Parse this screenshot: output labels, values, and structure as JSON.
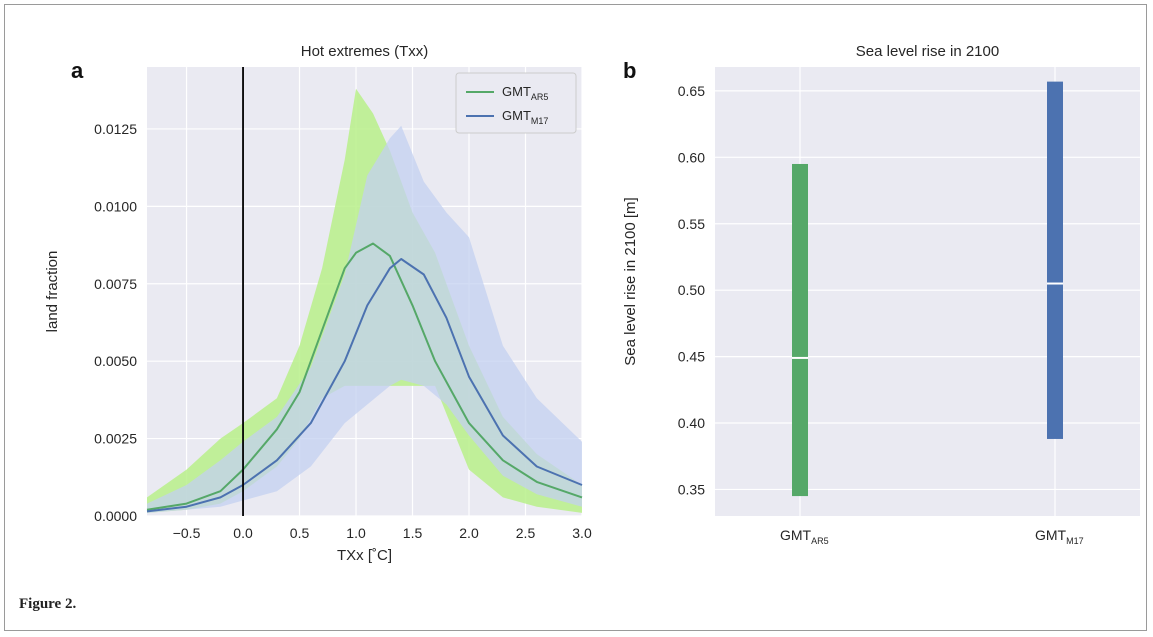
{
  "figure": {
    "caption": "Figure 2."
  },
  "chart_data": [
    {
      "type": "line",
      "panel_label": "a",
      "title": "Hot extremes (Txx)",
      "xlabel": "TXx [˚C]",
      "ylabel": "land fraction",
      "xlim": [
        -0.85,
        3.0
      ],
      "ylim": [
        0,
        0.0145
      ],
      "xticks": [
        -0.5,
        0.0,
        0.5,
        1.0,
        1.5,
        2.0,
        2.5,
        3.0
      ],
      "xtick_labels": [
        "−0.5",
        "0.0",
        "0.5",
        "1.0",
        "1.5",
        "2.0",
        "2.5",
        "3.0"
      ],
      "yticks": [
        0,
        0.0025,
        0.005,
        0.0075,
        0.01,
        0.0125
      ],
      "ytick_labels": [
        "0.0000",
        "0.0025",
        "0.0050",
        "0.0075",
        "0.0100",
        "0.0125"
      ],
      "grid": true,
      "legend_position": "top-right",
      "vline_x": 0.0,
      "series": [
        {
          "name": "GMT",
          "name_sub": "AR5",
          "color": "#55a868",
          "band_color": "#b8f08a",
          "x": [
            -0.85,
            -0.5,
            -0.2,
            0.0,
            0.3,
            0.5,
            0.7,
            0.9,
            1.0,
            1.15,
            1.3,
            1.5,
            1.7,
            2.0,
            2.3,
            2.6,
            3.0
          ],
          "values": [
            0.0002,
            0.0004,
            0.0008,
            0.0015,
            0.0028,
            0.004,
            0.006,
            0.008,
            0.0085,
            0.0088,
            0.0084,
            0.0068,
            0.005,
            0.003,
            0.0018,
            0.0011,
            0.0006
          ],
          "band_upper": [
            0.0006,
            0.0015,
            0.0025,
            0.003,
            0.0038,
            0.0055,
            0.008,
            0.0115,
            0.0138,
            0.013,
            0.0118,
            0.0098,
            0.0085,
            0.0055,
            0.0032,
            0.002,
            0.001
          ],
          "band_lower": [
            0.0001,
            0.0002,
            0.0004,
            0.0008,
            0.0016,
            0.0025,
            0.0038,
            0.0042,
            0.0042,
            0.0042,
            0.0042,
            0.0042,
            0.0042,
            0.0015,
            0.0006,
            0.0003,
            0.0001
          ]
        },
        {
          "name": "GMT",
          "name_sub": "M17",
          "color": "#4c72b0",
          "band_color": "#c3d0f0",
          "x": [
            -0.85,
            -0.5,
            -0.2,
            0.0,
            0.3,
            0.6,
            0.9,
            1.1,
            1.3,
            1.4,
            1.6,
            1.8,
            2.0,
            2.3,
            2.6,
            3.0
          ],
          "values": [
            0.00015,
            0.0003,
            0.0006,
            0.001,
            0.0018,
            0.003,
            0.005,
            0.0068,
            0.008,
            0.0083,
            0.0078,
            0.0064,
            0.0045,
            0.0026,
            0.0016,
            0.001
          ],
          "band_upper": [
            0.0004,
            0.001,
            0.0018,
            0.0024,
            0.0032,
            0.0048,
            0.0078,
            0.011,
            0.0122,
            0.0126,
            0.0108,
            0.0098,
            0.009,
            0.0055,
            0.0038,
            0.0024
          ],
          "band_lower": [
            0.0001,
            0.0002,
            0.0003,
            0.0005,
            0.0008,
            0.0016,
            0.003,
            0.0036,
            0.0042,
            0.0044,
            0.0042,
            0.0036,
            0.0026,
            0.0013,
            0.0007,
            0.0003
          ]
        }
      ]
    },
    {
      "type": "bar",
      "panel_label": "b",
      "title": "Sea level rise in 2100",
      "xlabel": "",
      "ylabel": "Sea level rise in 2100 [m]",
      "ylim": [
        0.33,
        0.668
      ],
      "yticks": [
        0.35,
        0.4,
        0.45,
        0.5,
        0.55,
        0.6,
        0.65
      ],
      "ytick_labels": [
        "0.35",
        "0.40",
        "0.45",
        "0.50",
        "0.55",
        "0.60",
        "0.65"
      ],
      "grid": true,
      "categories": [
        {
          "name": "GMT",
          "sub": "AR5",
          "low": 0.345,
          "high": 0.595,
          "median": 0.449,
          "color": "#55a868"
        },
        {
          "name": "GMT",
          "sub": "M17",
          "low": 0.388,
          "high": 0.657,
          "median": 0.505,
          "color": "#4c72b0"
        }
      ]
    }
  ]
}
